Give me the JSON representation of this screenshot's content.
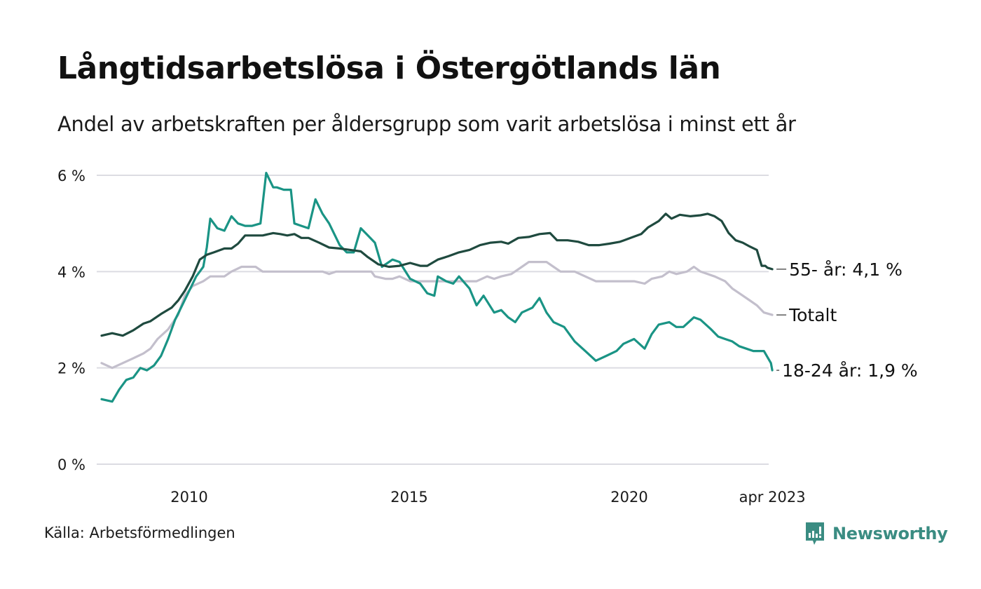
{
  "header": {
    "title": "Långtidsarbetslösa i Östergötlands län",
    "subtitle": "Andel av arbetskraften per åldersgrupp som varit arbetslösa i minst ett år"
  },
  "footer": {
    "source": "Källa: Arbetsförmedlingen",
    "brand": "Newsworthy",
    "brand_icon": "newsworthy-logo-icon",
    "brand_color": "#3a8c82"
  },
  "chart_data": {
    "type": "line",
    "title": "Långtidsarbetslösa i Östergötlands län",
    "subtitle": "Andel av arbetskraften per åldersgrupp som varit arbetslösa i minst ett år",
    "xlabel": "",
    "ylabel": "",
    "xlim": [
      2008.0,
      2023.25
    ],
    "ylim": [
      0,
      6
    ],
    "y_ticks": [
      0,
      2,
      4,
      6
    ],
    "y_tick_labels": [
      "0 %",
      "2 %",
      "4 %",
      "6 %"
    ],
    "x_ticks": [
      2010,
      2015,
      2020,
      2023.25
    ],
    "x_tick_labels": [
      "2010",
      "2015",
      "2020",
      "apr 2023"
    ],
    "grid": "horizontal",
    "legend": "direct-labels-right",
    "series": [
      {
        "name": "55- år",
        "end_label": "55- år: 4,1 %",
        "color": "#1f4a3f",
        "x": [
          2008.01,
          2008.25,
          2008.49,
          2008.73,
          2008.96,
          2009.12,
          2009.36,
          2009.6,
          2009.75,
          2009.9,
          2010.08,
          2010.24,
          2010.4,
          2010.56,
          2010.8,
          2010.96,
          2011.11,
          2011.27,
          2011.43,
          2011.67,
          2011.91,
          2012.07,
          2012.23,
          2012.39,
          2012.55,
          2012.71,
          2012.95,
          2013.18,
          2013.42,
          2013.66,
          2013.9,
          2014.06,
          2014.3,
          2014.54,
          2014.78,
          2015.02,
          2015.25,
          2015.41,
          2015.65,
          2015.89,
          2016.13,
          2016.37,
          2016.61,
          2016.85,
          2017.09,
          2017.25,
          2017.48,
          2017.72,
          2017.96,
          2018.2,
          2018.36,
          2018.6,
          2018.84,
          2019.08,
          2019.32,
          2019.55,
          2019.79,
          2020.03,
          2020.27,
          2020.43,
          2020.67,
          2020.83,
          2020.96,
          2021.15,
          2021.39,
          2021.62,
          2021.78,
          2021.94,
          2022.1,
          2022.26,
          2022.42,
          2022.58,
          2022.74,
          2022.9,
          2023.01,
          2023.09,
          2023.14,
          2023.25
        ],
        "y": [
          2.67,
          2.72,
          2.67,
          2.78,
          2.92,
          2.97,
          3.12,
          3.25,
          3.4,
          3.6,
          3.9,
          4.25,
          4.35,
          4.4,
          4.48,
          4.48,
          4.58,
          4.75,
          4.75,
          4.75,
          4.8,
          4.78,
          4.75,
          4.78,
          4.7,
          4.7,
          4.6,
          4.5,
          4.48,
          4.45,
          4.42,
          4.3,
          4.15,
          4.1,
          4.12,
          4.18,
          4.12,
          4.12,
          4.25,
          4.32,
          4.4,
          4.45,
          4.55,
          4.6,
          4.62,
          4.58,
          4.7,
          4.72,
          4.78,
          4.8,
          4.65,
          4.65,
          4.62,
          4.55,
          4.55,
          4.58,
          4.62,
          4.7,
          4.78,
          4.92,
          5.05,
          5.2,
          5.1,
          5.18,
          5.15,
          5.17,
          5.2,
          5.15,
          5.05,
          4.8,
          4.65,
          4.6,
          4.52,
          4.45,
          4.12,
          4.12,
          4.08,
          4.05
        ]
      },
      {
        "name": "Totalt",
        "end_label": "Totalt",
        "color": "#c3bfcc",
        "x": [
          2008.01,
          2008.25,
          2008.49,
          2008.73,
          2008.96,
          2009.12,
          2009.28,
          2009.52,
          2009.75,
          2009.9,
          2010.08,
          2010.32,
          2010.48,
          2010.8,
          2010.96,
          2011.19,
          2011.51,
          2011.67,
          2011.91,
          2013.03,
          2013.18,
          2013.34,
          2014.14,
          2014.22,
          2014.46,
          2014.62,
          2014.78,
          2015.02,
          2016.53,
          2016.77,
          2016.93,
          2017.09,
          2017.32,
          2017.56,
          2017.72,
          2018.12,
          2018.28,
          2018.44,
          2018.76,
          2019.0,
          2019.24,
          2019.55,
          2019.87,
          2020.11,
          2020.35,
          2020.51,
          2020.75,
          2020.91,
          2021.07,
          2021.31,
          2021.47,
          2021.62,
          2021.78,
          2021.94,
          2022.18,
          2022.34,
          2022.5,
          2022.74,
          2022.9,
          2023.06,
          2023.25
        ],
        "y": [
          2.1,
          2.0,
          2.1,
          2.2,
          2.3,
          2.4,
          2.6,
          2.8,
          3.1,
          3.5,
          3.7,
          3.8,
          3.9,
          3.9,
          4.0,
          4.1,
          4.1,
          4.0,
          4.0,
          4.0,
          3.95,
          4.0,
          4.0,
          3.9,
          3.85,
          3.85,
          3.9,
          3.8,
          3.8,
          3.9,
          3.85,
          3.9,
          3.95,
          4.1,
          4.2,
          4.2,
          4.1,
          4.0,
          4.0,
          3.9,
          3.8,
          3.8,
          3.8,
          3.8,
          3.75,
          3.85,
          3.9,
          4.0,
          3.95,
          4.0,
          4.1,
          4.0,
          3.95,
          3.9,
          3.8,
          3.65,
          3.55,
          3.4,
          3.3,
          3.15,
          3.1
        ]
      },
      {
        "name": "18-24 år",
        "end_label": "18-24 år: 1,9 %",
        "color": "#1a9485",
        "x": [
          2008.01,
          2008.25,
          2008.41,
          2008.57,
          2008.73,
          2008.89,
          2009.04,
          2009.2,
          2009.36,
          2009.52,
          2009.68,
          2009.84,
          2010.0,
          2010.16,
          2010.24,
          2010.32,
          2010.4,
          2010.48,
          2010.64,
          2010.8,
          2010.96,
          2011.11,
          2011.27,
          2011.43,
          2011.62,
          2011.75,
          2011.91,
          2011.99,
          2012.15,
          2012.31,
          2012.39,
          2012.55,
          2012.71,
          2012.87,
          2013.03,
          2013.18,
          2013.42,
          2013.58,
          2013.74,
          2013.9,
          2014.06,
          2014.22,
          2014.38,
          2014.62,
          2014.78,
          2015.02,
          2015.25,
          2015.41,
          2015.57,
          2015.65,
          2015.84,
          2016.0,
          2016.13,
          2016.37,
          2016.53,
          2016.69,
          2016.93,
          2017.09,
          2017.25,
          2017.41,
          2017.56,
          2017.8,
          2017.96,
          2018.12,
          2018.28,
          2018.52,
          2018.76,
          2019.0,
          2019.24,
          2019.48,
          2019.71,
          2019.87,
          2020.11,
          2020.35,
          2020.51,
          2020.67,
          2020.91,
          2021.07,
          2021.23,
          2021.47,
          2021.62,
          2021.86,
          2022.02,
          2022.18,
          2022.34,
          2022.5,
          2022.66,
          2022.82,
          2023.06,
          2023.22,
          2023.25
        ],
        "y": [
          1.35,
          1.3,
          1.55,
          1.75,
          1.8,
          2.0,
          1.95,
          2.05,
          2.25,
          2.6,
          3.0,
          3.3,
          3.6,
          3.9,
          4.0,
          4.1,
          4.5,
          5.1,
          4.9,
          4.85,
          5.15,
          5.0,
          4.95,
          4.95,
          5.0,
          6.05,
          5.75,
          5.75,
          5.7,
          5.7,
          5.0,
          4.95,
          4.9,
          5.5,
          5.2,
          5.0,
          4.55,
          4.4,
          4.4,
          4.9,
          4.75,
          4.6,
          4.1,
          4.25,
          4.2,
          3.85,
          3.75,
          3.55,
          3.5,
          3.9,
          3.8,
          3.75,
          3.9,
          3.65,
          3.3,
          3.5,
          3.15,
          3.2,
          3.05,
          2.95,
          3.15,
          3.25,
          3.45,
          3.15,
          2.95,
          2.85,
          2.55,
          2.35,
          2.15,
          2.25,
          2.35,
          2.5,
          2.6,
          2.4,
          2.7,
          2.9,
          2.95,
          2.85,
          2.85,
          3.05,
          3.0,
          2.8,
          2.65,
          2.6,
          2.55,
          2.45,
          2.4,
          2.35,
          2.35,
          2.1,
          1.95
        ]
      }
    ]
  }
}
